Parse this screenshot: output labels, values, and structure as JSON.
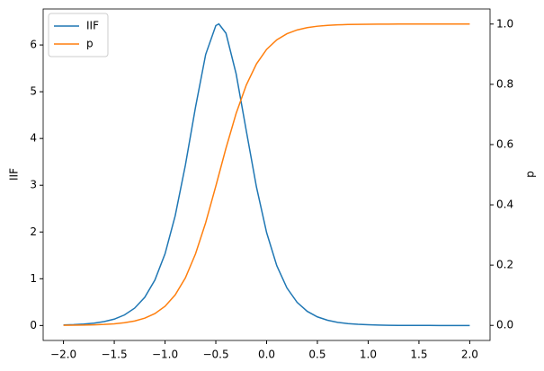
{
  "chart_data": {
    "type": "line",
    "ylabel": "IIF",
    "y2label": "p",
    "x": [
      -2.0,
      -1.9,
      -1.8,
      -1.7,
      -1.6,
      -1.5,
      -1.4,
      -1.3,
      -1.2,
      -1.1,
      -1.0,
      -0.9,
      -0.8,
      -0.7,
      -0.6,
      -0.5,
      -0.47,
      -0.4,
      -0.3,
      -0.2,
      -0.1,
      0.0,
      0.1,
      0.2,
      0.3,
      0.4,
      0.5,
      0.6,
      0.7,
      0.8,
      0.9,
      1.0,
      1.1,
      1.2,
      1.3,
      1.4,
      1.5,
      1.6,
      1.7,
      1.8,
      1.9,
      2.0
    ],
    "series": [
      {
        "name": "IIF",
        "color": "#1f77b4",
        "values": [
          0.011,
          0.018,
          0.03,
          0.05,
          0.083,
          0.136,
          0.225,
          0.37,
          0.602,
          0.971,
          1.533,
          2.347,
          3.427,
          4.669,
          5.797,
          6.415,
          6.45,
          6.251,
          5.383,
          4.165,
          2.964,
          1.988,
          1.281,
          0.804,
          0.496,
          0.303,
          0.184,
          0.112,
          0.067,
          0.041,
          0.025,
          0.015,
          0.009,
          0.005,
          0.003,
          0.002,
          0.001,
          0.001,
          0.0004,
          0.0003,
          0.0002,
          0.0001
        ]
      },
      {
        "name": "p",
        "color": "#ff7f0e",
        "axis": "y2",
        "values": [
          0.0004,
          0.0007,
          0.0012,
          0.0019,
          0.0032,
          0.0053,
          0.0088,
          0.0145,
          0.0239,
          0.0392,
          0.0634,
          0.1012,
          0.1576,
          0.2372,
          0.3407,
          0.4621,
          0.5,
          0.5881,
          0.7035,
          0.7977,
          0.8676,
          0.9159,
          0.9476,
          0.9678,
          0.9804,
          0.9881,
          0.9928,
          0.9957,
          0.9974,
          0.9984,
          0.9991,
          0.9994,
          0.9997,
          0.9998,
          0.9999,
          0.9999,
          1.0,
          1.0,
          1.0,
          1.0,
          1.0,
          1.0
        ]
      }
    ],
    "xlim": [
      -2.2,
      2.2
    ],
    "xticks": [
      {
        "value": -2.0,
        "label": "−2.0"
      },
      {
        "value": -1.5,
        "label": "−1.5"
      },
      {
        "value": -1.0,
        "label": "−1.0"
      },
      {
        "value": -0.5,
        "label": "−0.5"
      },
      {
        "value": 0.0,
        "label": "0.0"
      },
      {
        "value": 0.5,
        "label": "0.5"
      },
      {
        "value": 1.0,
        "label": "1.0"
      },
      {
        "value": 1.5,
        "label": "1.5"
      },
      {
        "value": 2.0,
        "label": "2.0"
      }
    ],
    "ylim": [
      -0.32,
      6.77
    ],
    "yticks": [
      0,
      1,
      2,
      3,
      4,
      5,
      6
    ],
    "y2lim": [
      -0.05,
      1.05
    ],
    "y2ticks": [
      {
        "value": 0.0,
        "label": "0.0"
      },
      {
        "value": 0.2,
        "label": "0.2"
      },
      {
        "value": 0.4,
        "label": "0.4"
      },
      {
        "value": 0.6,
        "label": "0.6"
      },
      {
        "value": 0.8,
        "label": "0.8"
      },
      {
        "value": 1.0,
        "label": "1.0"
      }
    ],
    "legend": "upper left"
  }
}
